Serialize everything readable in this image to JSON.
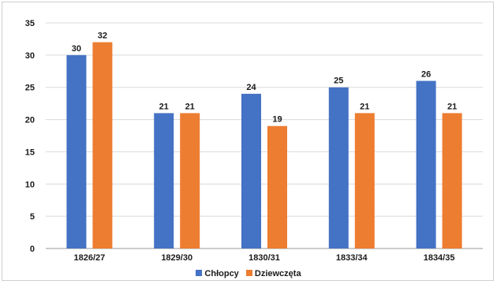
{
  "chart_data": {
    "type": "bar",
    "categories": [
      "1826/27",
      "1829/30",
      "1830/31",
      "1833/34",
      "1834/35"
    ],
    "series": [
      {
        "name": "Chłopcy",
        "color": "#4472C4",
        "values": [
          30,
          21,
          24,
          25,
          26
        ]
      },
      {
        "name": "Dziewczęta",
        "color": "#ED7D31",
        "values": [
          32,
          21,
          19,
          21,
          21
        ]
      }
    ],
    "ylim": [
      0,
      35
    ],
    "yticks": [
      0,
      5,
      10,
      15,
      20,
      25,
      30,
      35
    ],
    "grid": true,
    "legend_position": "bottom",
    "title": "",
    "xlabel": "",
    "ylabel": ""
  }
}
